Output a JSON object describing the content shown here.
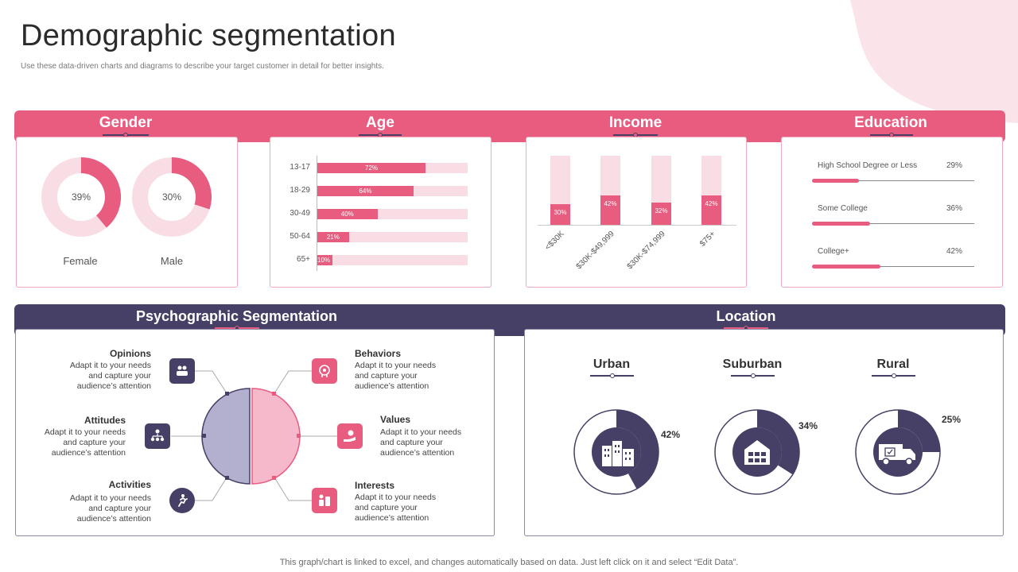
{
  "page": {
    "title": "Demographic segmentation",
    "subtitle": "Use these data-driven charts and diagrams to describe your target customer in detail for better insights.",
    "footer": "This graph/chart is linked to excel, and changes automatically based on data. Just left click on it and select “Edit Data”."
  },
  "colors": {
    "pink": "#e85c80",
    "light_pink": "#f9dde5",
    "navy": "#463f66",
    "lavender": "#b3b0cf",
    "blush": "#f6b9cb"
  },
  "sections": {
    "gender": "Gender",
    "age": "Age",
    "income": "Income",
    "education": "Education",
    "psychographic": "Psychographic Segmentation",
    "location": "Location"
  },
  "chart_data": [
    {
      "type": "pie",
      "section": "Gender",
      "categories": [
        "Female",
        "Male"
      ],
      "values": [
        39,
        30
      ],
      "value_labels": [
        "39%",
        "30%"
      ]
    },
    {
      "type": "bar",
      "section": "Age",
      "categories": [
        "13-17",
        "18-29",
        "30-49",
        "50-64",
        "65+"
      ],
      "values": [
        72,
        64,
        40,
        21,
        10
      ],
      "value_labels": [
        "72%",
        "64%",
        "40%",
        "21%",
        "10%"
      ],
      "ylim": [
        0,
        100
      ]
    },
    {
      "type": "bar",
      "section": "Income",
      "categories": [
        "<$30K",
        "$30K-$49,999",
        "$30K-$74,999",
        "$75+"
      ],
      "values": [
        30,
        42,
        32,
        42
      ],
      "value_labels": [
        "30%",
        "42%",
        "32%",
        "42%"
      ],
      "ylim": [
        0,
        100
      ]
    },
    {
      "type": "bar",
      "section": "Education",
      "categories": [
        "High School Degree or Less",
        "Some College",
        "College+"
      ],
      "values": [
        29,
        36,
        42
      ],
      "value_labels": [
        "29%",
        "36%",
        "42%"
      ],
      "ylim": [
        0,
        100
      ]
    },
    {
      "type": "pie",
      "section": "Location",
      "categories": [
        "Urban",
        "Suburban",
        "Rural"
      ],
      "values": [
        42,
        34,
        25
      ],
      "value_labels": [
        "42%",
        "34%",
        "25%"
      ]
    }
  ],
  "psychographic": {
    "items": [
      {
        "title": "Opinions",
        "desc": [
          "Adapt it to your needs",
          "and capture your",
          "audience’s attention"
        ],
        "icon": "people-chat-icon"
      },
      {
        "title": "Attitudes",
        "desc": [
          "Adapt it to your needs",
          "and capture your",
          "audience’s attention"
        ],
        "icon": "org-chart-icon"
      },
      {
        "title": "Activities",
        "desc": [
          "Adapt it to your needs",
          "and capture your",
          "audience’s attention"
        ],
        "icon": "running-icon"
      },
      {
        "title": "Behaviors",
        "desc": [
          "Adapt it to your needs",
          "and capture your",
          "audience’s attention"
        ],
        "icon": "brain-gear-icon"
      },
      {
        "title": "Values",
        "desc": [
          "Adapt it to your needs",
          "and capture your",
          "audience’s attention"
        ],
        "icon": "hand-dollar-icon"
      },
      {
        "title": "Interests",
        "desc": [
          "Adapt it to your needs",
          "and capture your",
          "audience’s attention"
        ],
        "icon": "hobbies-icon"
      }
    ]
  },
  "location": {
    "icons": [
      "city-buildings-icon",
      "house-icon",
      "delivery-truck-icon"
    ]
  }
}
